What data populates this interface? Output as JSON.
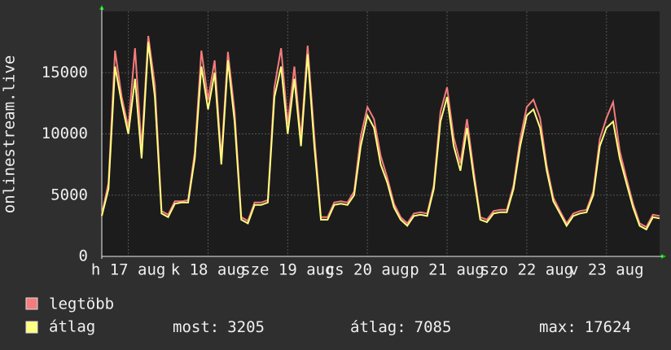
{
  "chart_data": {
    "type": "line",
    "y_label": "onlinestream.live",
    "x": [
      0,
      2,
      4,
      6,
      8,
      10,
      12,
      14,
      16,
      18,
      20,
      22,
      24,
      26,
      28,
      30,
      32,
      34,
      36,
      38,
      40,
      42,
      44,
      46,
      48,
      50,
      52,
      54,
      56,
      58,
      60,
      62,
      64,
      66,
      68,
      70,
      72,
      74,
      76,
      78,
      80,
      82,
      84,
      86,
      88,
      90,
      92,
      94,
      96,
      98,
      100,
      102,
      104,
      106,
      108,
      110,
      112,
      114,
      116,
      118,
      120,
      122,
      124,
      126,
      128,
      130,
      132,
      134,
      136,
      138,
      140,
      142,
      144,
      146,
      148,
      150,
      152,
      154,
      156,
      158,
      160,
      162,
      164,
      166,
      168
    ],
    "series": [
      {
        "name": "legtöbb",
        "color": "#f47c7c",
        "values": [
          3400,
          6000,
          16800,
          13000,
          10500,
          17000,
          8800,
          18000,
          14000,
          3700,
          3400,
          4500,
          4500,
          4600,
          8500,
          16800,
          12800,
          16000,
          8000,
          16700,
          11800,
          3200,
          2900,
          4400,
          4400,
          4600,
          13800,
          17000,
          10800,
          15500,
          9600,
          17200,
          9800,
          3200,
          3200,
          4400,
          4500,
          4400,
          5300,
          9800,
          12200,
          11200,
          8200,
          6400,
          4300,
          3200,
          2700,
          3500,
          3600,
          3500,
          5800,
          11800,
          13800,
          9700,
          7600,
          11200,
          7000,
          3200,
          3000,
          3700,
          3800,
          3800,
          5800,
          9600,
          12200,
          12800,
          11300,
          7400,
          4800,
          3700,
          2700,
          3500,
          3700,
          3800,
          5300,
          9600,
          11300,
          12600,
          8600,
          6400,
          4300,
          2700,
          2400,
          3400,
          3300
        ]
      },
      {
        "name": "átlag",
        "color": "#ffff80",
        "values": [
          3300,
          5500,
          15500,
          12500,
          10000,
          14500,
          8000,
          17500,
          13000,
          3500,
          3200,
          4300,
          4400,
          4400,
          8000,
          15500,
          12000,
          15000,
          7500,
          16000,
          11000,
          3000,
          2700,
          4200,
          4200,
          4400,
          13000,
          15500,
          10000,
          14500,
          9000,
          16500,
          9000,
          3000,
          3000,
          4200,
          4300,
          4200,
          5000,
          9000,
          11500,
          10500,
          7500,
          6000,
          4000,
          3000,
          2500,
          3300,
          3400,
          3300,
          5500,
          11000,
          13000,
          9000,
          7000,
          10500,
          6500,
          3000,
          2800,
          3500,
          3600,
          3600,
          5500,
          9000,
          11500,
          12000,
          10500,
          7000,
          4500,
          3500,
          2500,
          3300,
          3500,
          3600,
          5000,
          9000,
          10500,
          11000,
          8000,
          6000,
          4000,
          2500,
          2200,
          3200,
          3100
        ]
      }
    ],
    "xlim": [
      0,
      168
    ],
    "xticks": [
      {
        "value": 8,
        "label": "h 17 aug"
      },
      {
        "value": 32,
        "label": "k 18 aug"
      },
      {
        "value": 56,
        "label": "sze 19 aug"
      },
      {
        "value": 80,
        "label": "cs 20 aug"
      },
      {
        "value": 104,
        "label": "p 21 aug"
      },
      {
        "value": 128,
        "label": "szo 22 aug"
      },
      {
        "value": 152,
        "label": "v 23 aug"
      }
    ],
    "ylim": [
      0,
      20000
    ],
    "yticks": [
      0,
      5000,
      10000,
      15000
    ],
    "grid": true,
    "stats": [
      {
        "label": "most:",
        "value": 3205
      },
      {
        "label": "átlag:",
        "value": 7085
      },
      {
        "label": "max:",
        "value": 17624
      }
    ]
  }
}
